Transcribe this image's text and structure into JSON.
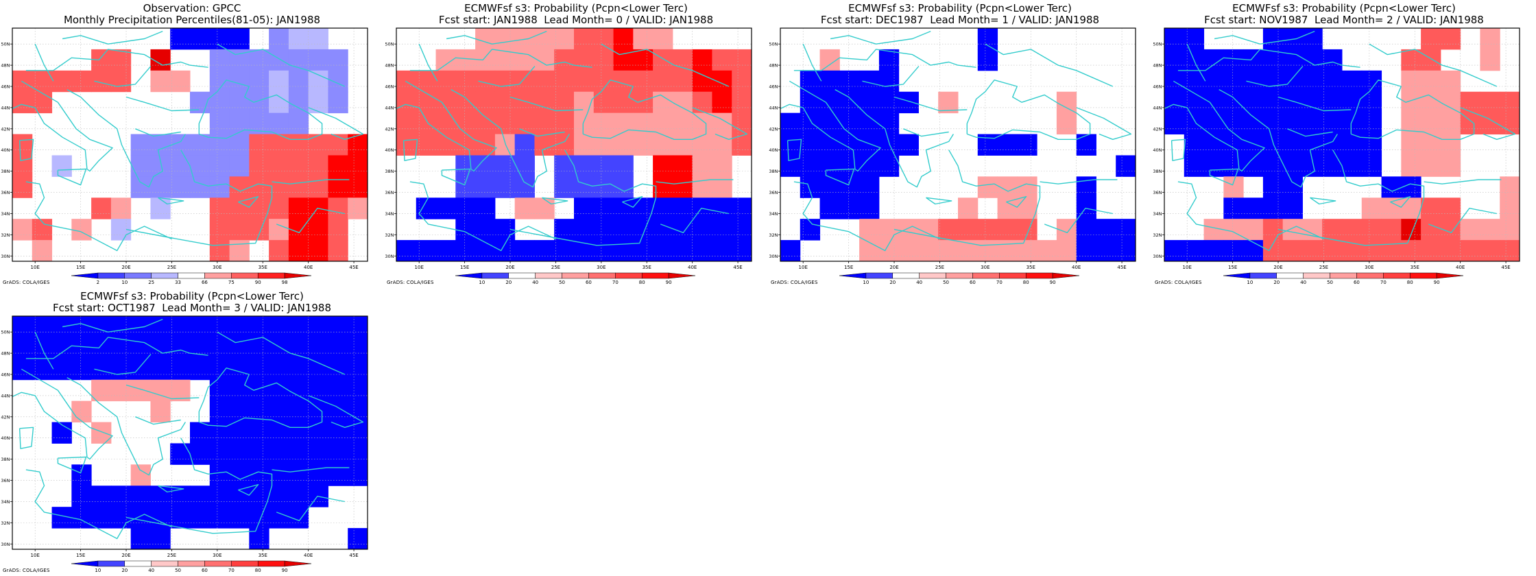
{
  "grads_label": "GrADS: COLA/IGES",
  "map_axes": {
    "lon_labels": [
      "10E",
      "15E",
      "20E",
      "25E",
      "30E",
      "35E",
      "40E",
      "45E"
    ],
    "lat_labels": [
      "30N",
      "32N",
      "34N",
      "36N",
      "38N",
      "40N",
      "42N",
      "44N",
      "46N",
      "48N",
      "50N"
    ]
  },
  "palette": {
    "dark_blue": "#0000ff",
    "mid_blue": "#4444ff",
    "light_blue": "#8b8bff",
    "pale_blue": "#b8b8ff",
    "light_red": "#ffa0a0",
    "mid_red": "#ff5a5a",
    "dark_red": "#ff0000",
    "deep_red": "#e60000",
    "coastline": "#33cccc"
  },
  "panels": [
    {
      "id": "obs",
      "title_line1": "Observation: GPCC",
      "title_line2": "Monthly Precipitation Percentiles(81-05): JAN1988",
      "colorbar_labels": [
        "2",
        "10",
        "25",
        "33",
        "66",
        "75",
        "90",
        "98"
      ],
      "colorbar_colors": [
        "#0000ff",
        "#4444ff",
        "#7a7aff",
        "#b8b8ff",
        "#ffffff",
        "#ffa0a0",
        "#ff6060",
        "#ff2020",
        "#e60000"
      ]
    },
    {
      "id": "lead0",
      "title_line1": "ECMWFsf s3: Probability (Pcpn<Lower Terc)",
      "title_line2": "Fcst start: JAN1988  Lead Month= 0 / VALID: JAN1988",
      "colorbar_labels": [
        "10",
        "20",
        "40",
        "50",
        "60",
        "70",
        "80",
        "90"
      ],
      "colorbar_colors": [
        "#0000ff",
        "#4444ff",
        "#ffffff",
        "#ffc8c8",
        "#ffa0a0",
        "#ff7070",
        "#ff4040",
        "#ff1010",
        "#e60000"
      ]
    },
    {
      "id": "lead1",
      "title_line1": "ECMWFsf s3: Probability (Pcpn<Lower Terc)",
      "title_line2": "Fcst start: DEC1987  Lead Month= 1 / VALID: JAN1988",
      "colorbar_labels": [
        "10",
        "20",
        "40",
        "50",
        "60",
        "70",
        "80",
        "90"
      ],
      "colorbar_colors": [
        "#0000ff",
        "#4444ff",
        "#ffffff",
        "#ffc8c8",
        "#ffa0a0",
        "#ff7070",
        "#ff4040",
        "#ff1010",
        "#e60000"
      ]
    },
    {
      "id": "lead2",
      "title_line1": "ECMWFsf s3: Probability (Pcpn<Lower Terc)",
      "title_line2": "Fcst start: NOV1987  Lead Month= 2 / VALID: JAN1988",
      "colorbar_labels": [
        "10",
        "20",
        "40",
        "50",
        "60",
        "70",
        "80",
        "90"
      ],
      "colorbar_colors": [
        "#0000ff",
        "#4444ff",
        "#ffffff",
        "#ffc8c8",
        "#ffa0a0",
        "#ff7070",
        "#ff4040",
        "#ff1010",
        "#e60000"
      ]
    },
    {
      "id": "lead3",
      "title_line1": "ECMWFsf s3: Probability (Pcpn<Lower Terc)",
      "title_line2": "Fcst start: OCT1987  Lead Month= 3 / VALID: JAN1988",
      "colorbar_labels": [
        "10",
        "20",
        "40",
        "50",
        "60",
        "70",
        "80",
        "90"
      ],
      "colorbar_colors": [
        "#0000ff",
        "#4444ff",
        "#ffffff",
        "#ffc8c8",
        "#ffa0a0",
        "#ff7070",
        "#ff4040",
        "#ff1010",
        "#e60000"
      ]
    }
  ]
}
